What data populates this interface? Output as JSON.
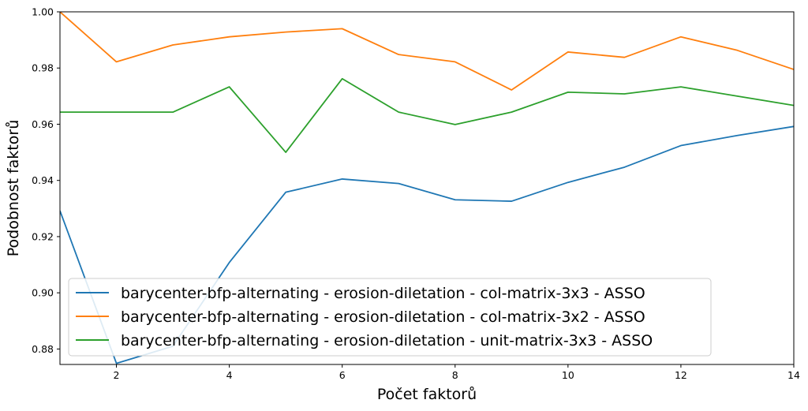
{
  "chart_data": {
    "type": "line",
    "xlabel": "Počet faktorů",
    "ylabel": "Podobnost faktorů",
    "xlim": [
      1,
      14
    ],
    "ylim": [
      0.8745,
      1.0
    ],
    "xticks": [
      2,
      4,
      6,
      8,
      10,
      12,
      14
    ],
    "yticks": [
      0.88,
      0.9,
      0.92,
      0.94,
      0.96,
      0.98,
      1.0
    ],
    "grid": false,
    "legend_position": "lower-left",
    "x": [
      1,
      2,
      3,
      4,
      5,
      6,
      7,
      8,
      9,
      10,
      11,
      12,
      13,
      14
    ],
    "series": [
      {
        "name": "barycenter-bfp-alternating - erosion-diletation - col-matrix-3x3 - ASSO",
        "color": "#1f77b4",
        "values": [
          0.9292,
          0.8749,
          0.881,
          0.9108,
          0.9358,
          0.9405,
          0.9389,
          0.9331,
          0.9326,
          0.9393,
          0.9447,
          0.9524,
          0.956,
          0.9592
        ]
      },
      {
        "name": "barycenter-bfp-alternating - erosion-diletation - col-matrix-3x2 - ASSO",
        "color": "#ff7f0e",
        "values": [
          1.0,
          0.9822,
          0.9882,
          0.9911,
          0.9928,
          0.994,
          0.9848,
          0.9822,
          0.9722,
          0.9857,
          0.9838,
          0.9911,
          0.9863,
          0.9795
        ]
      },
      {
        "name": "barycenter-bfp-alternating - erosion-diletation - unit-matrix-3x3 - ASSO",
        "color": "#2ca02c",
        "values": [
          0.9643,
          0.9643,
          0.9643,
          0.9733,
          0.95,
          0.9762,
          0.9643,
          0.9599,
          0.9643,
          0.9714,
          0.9708,
          0.9733,
          0.97,
          0.9667
        ]
      }
    ]
  }
}
